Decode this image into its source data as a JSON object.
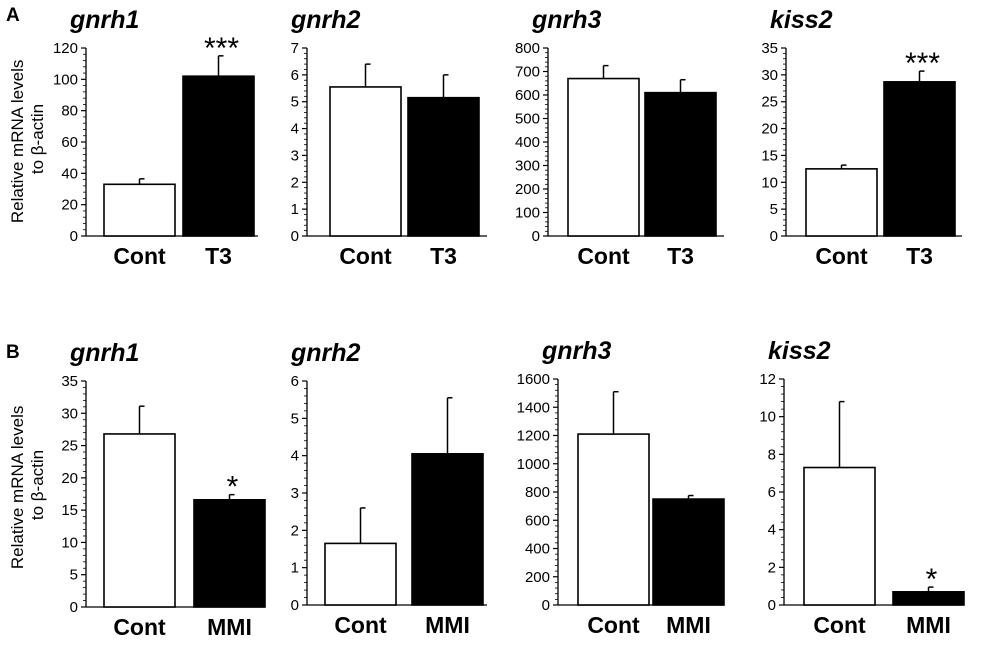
{
  "figure": {
    "panel_labels": [
      "A",
      "B"
    ],
    "ylabel_lines": [
      "Relative mRNA levels",
      "to β-actin"
    ]
  },
  "chart_data": [
    {
      "panel": "A",
      "type": "bar",
      "title": "gnrh1",
      "categories": [
        "Cont",
        "T3"
      ],
      "values": [
        33,
        102
      ],
      "errors": [
        3.5,
        13
      ],
      "ylim": [
        0,
        120
      ],
      "yticks": [
        0,
        20,
        40,
        60,
        80,
        100,
        120
      ],
      "significance": [
        "",
        "***"
      ],
      "bar_fill": [
        "#ffffff",
        "#000000"
      ],
      "xlabel": "",
      "ylabel": "Relative mRNA levels to β-actin"
    },
    {
      "panel": "A",
      "type": "bar",
      "title": "gnrh2",
      "categories": [
        "Cont",
        "T3"
      ],
      "values": [
        5.55,
        5.15
      ],
      "errors": [
        0.85,
        0.85
      ],
      "ylim": [
        0,
        7
      ],
      "yticks": [
        0,
        1,
        2,
        3,
        4,
        5,
        6,
        7
      ],
      "significance": [
        "",
        ""
      ],
      "bar_fill": [
        "#ffffff",
        "#000000"
      ],
      "xlabel": "",
      "ylabel": ""
    },
    {
      "panel": "A",
      "type": "bar",
      "title": "gnrh3",
      "categories": [
        "Cont",
        "T3"
      ],
      "values": [
        670,
        610
      ],
      "errors": [
        55,
        55
      ],
      "ylim": [
        0,
        800
      ],
      "yticks": [
        0,
        100,
        200,
        300,
        400,
        500,
        600,
        700,
        800
      ],
      "significance": [
        "",
        ""
      ],
      "bar_fill": [
        "#ffffff",
        "#000000"
      ],
      "xlabel": "",
      "ylabel": ""
    },
    {
      "panel": "A",
      "type": "bar",
      "title": "kiss2",
      "categories": [
        "Cont",
        "T3"
      ],
      "values": [
        12.5,
        28.7
      ],
      "errors": [
        0.7,
        2.0
      ],
      "ylim": [
        0,
        35
      ],
      "yticks": [
        0,
        5,
        10,
        15,
        20,
        25,
        30,
        35
      ],
      "significance": [
        "",
        "***"
      ],
      "bar_fill": [
        "#ffffff",
        "#000000"
      ],
      "xlabel": "",
      "ylabel": ""
    },
    {
      "panel": "B",
      "type": "bar",
      "title": "gnrh1",
      "categories": [
        "Cont",
        "MMI"
      ],
      "values": [
        26.8,
        16.6
      ],
      "errors": [
        4.3,
        0.8
      ],
      "ylim": [
        0,
        35
      ],
      "yticks": [
        0,
        5,
        10,
        15,
        20,
        25,
        30,
        35
      ],
      "significance": [
        "",
        "*"
      ],
      "bar_fill": [
        "#ffffff",
        "#000000"
      ],
      "xlabel": "",
      "ylabel": "Relative mRNA levels to β-actin"
    },
    {
      "panel": "B",
      "type": "bar",
      "title": "gnrh2",
      "categories": [
        "Cont",
        "MMI"
      ],
      "values": [
        1.65,
        4.05
      ],
      "errors": [
        0.95,
        1.5
      ],
      "ylim": [
        0,
        6
      ],
      "yticks": [
        0,
        1,
        2,
        3,
        4,
        5,
        6
      ],
      "significance": [
        "",
        ""
      ],
      "bar_fill": [
        "#ffffff",
        "#000000"
      ],
      "xlabel": "",
      "ylabel": ""
    },
    {
      "panel": "B",
      "type": "bar",
      "title": "gnrh3",
      "categories": [
        "Cont",
        "MMI"
      ],
      "values": [
        1210,
        750
      ],
      "errors": [
        300,
        25
      ],
      "ylim": [
        0,
        1600
      ],
      "yticks": [
        0,
        200,
        400,
        600,
        800,
        1000,
        1200,
        1400,
        1600
      ],
      "significance": [
        "",
        ""
      ],
      "bar_fill": [
        "#ffffff",
        "#000000"
      ],
      "xlabel": "",
      "ylabel": ""
    },
    {
      "panel": "B",
      "type": "bar",
      "title": "kiss2",
      "categories": [
        "Cont",
        "MMI"
      ],
      "values": [
        7.3,
        0.7
      ],
      "errors": [
        3.5,
        0.25
      ],
      "ylim": [
        0,
        12
      ],
      "yticks": [
        0,
        2,
        4,
        6,
        8,
        10,
        12
      ],
      "significance": [
        "",
        "*"
      ],
      "bar_fill": [
        "#ffffff",
        "#000000"
      ],
      "xlabel": "",
      "ylabel": ""
    }
  ]
}
